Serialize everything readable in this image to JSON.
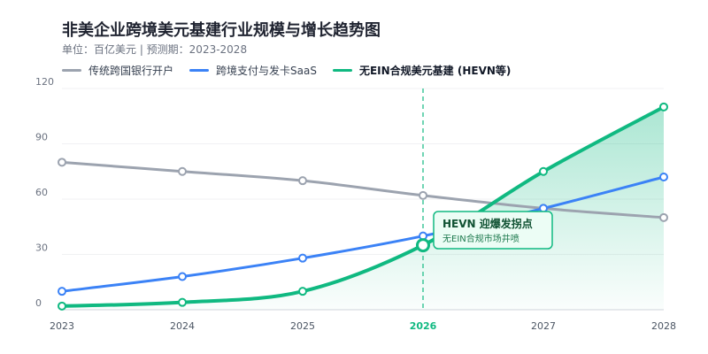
{
  "header": {
    "title": "非美企业跨境美元基建行业规模与增长趋势图",
    "subtitle": "单位：百亿美元 | 预测期：2023-2028"
  },
  "legend": [
    {
      "label": "传统跨国银行开户",
      "color": "#9ca3af"
    },
    {
      "label": "跨境支付与发卡SaaS",
      "color": "#3b82f6"
    },
    {
      "label": "无EIN合规美元基建 (HEVN等)",
      "color": "#10b981"
    }
  ],
  "annotation": {
    "title": "HEVN 迎爆发拐点",
    "subtitle": "无EIN合规市场井喷",
    "year": "2026"
  },
  "chart_data": {
    "type": "line",
    "x": [
      "2023",
      "2024",
      "2025",
      "2026",
      "2027",
      "2028"
    ],
    "ylim": [
      0,
      120
    ],
    "yticks": [
      0,
      30,
      60,
      90,
      120
    ],
    "highlight_x": "2026",
    "series": [
      {
        "name": "传统跨国银行开户",
        "color": "#9ca3af",
        "values": [
          80,
          75,
          70,
          62,
          55,
          50
        ]
      },
      {
        "name": "跨境支付与发卡SaaS",
        "color": "#3b82f6",
        "values": [
          10,
          18,
          28,
          40,
          55,
          72
        ]
      },
      {
        "name": "无EIN合规美元基建 (HEVN等)",
        "color": "#10b981",
        "values": [
          2,
          4,
          10,
          35,
          75,
          110
        ],
        "area": true
      }
    ]
  }
}
